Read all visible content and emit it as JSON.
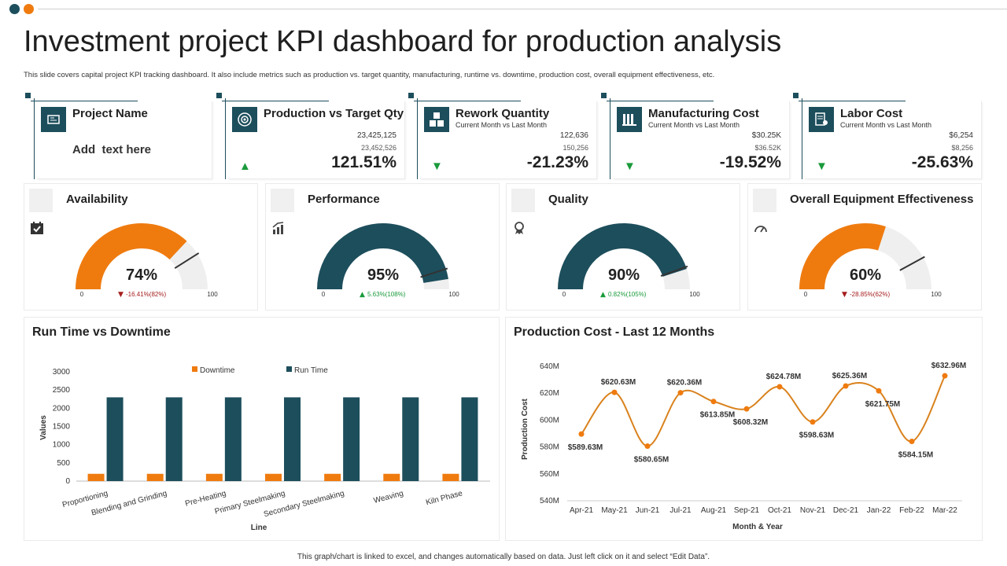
{
  "colors": {
    "teal": "#1d4e5c",
    "orange": "#ef7b0f",
    "gray": "#efefef",
    "green": "#1a9a3b",
    "red": "#a51d1d"
  },
  "title": "Investment project KPI dashboard for production analysis",
  "subtitle": "This slide covers capital project KPI tracking dashboard. It also include metrics such as production vs. target quantity, manufacturing, runtime vs. downtime, production cost, overall equipment effectiveness, etc.",
  "footer": "This graph/chart is linked to excel, and changes automatically based on data. Just left click on it and select “Edit Data”.",
  "kpis": [
    {
      "title": "Project Name",
      "placeholder": "Add  text here",
      "icon": "document-icon"
    },
    {
      "title": "Production vs Target Qty",
      "value1": "23,425,125",
      "value2": "23,452,526",
      "pct": "121.51%",
      "trend": "up",
      "icon": "target-icon"
    },
    {
      "title": "Rework Quantity",
      "subtitle": "Current Month vs Last Month",
      "value1": "122,636",
      "value2": "150,256",
      "pct": "-21.23%",
      "trend": "down",
      "icon": "boxes-icon"
    },
    {
      "title": "Manufacturing Cost",
      "subtitle": "Current Month vs Last Month",
      "value1": "$30.25K",
      "value2": "$36.52K",
      "pct": "-19.52%",
      "trend": "down",
      "icon": "factory-icon"
    },
    {
      "title": "Labor Cost",
      "subtitle": "Current Month vs Last Month",
      "value1": "$6,254",
      "value2": "$8,256",
      "pct": "-25.63%",
      "trend": "down",
      "icon": "labor-icon"
    }
  ],
  "gauges": [
    {
      "title": "Availability",
      "value": 74,
      "label": "74%",
      "color": "#ef7b0f",
      "change": "-16.41%(82%)",
      "trend": "down",
      "marker": 82,
      "min": "0",
      "max": "100",
      "icon": "calendar-check-icon"
    },
    {
      "title": "Performance",
      "value": 95,
      "label": "95%",
      "color": "#1d4e5c",
      "change": "5.63%(108%)",
      "trend": "up",
      "marker": 90,
      "min": "0",
      "max": "100",
      "icon": "growth-icon"
    },
    {
      "title": "Quality",
      "value": 90,
      "label": "90%",
      "color": "#1d4e5c",
      "change": "0.82%(105%)",
      "trend": "up",
      "marker": 89,
      "min": "0",
      "max": "100",
      "icon": "award-icon"
    },
    {
      "title": "Overall Equipment Effectiveness",
      "value": 60,
      "label": "60%",
      "color": "#ef7b0f",
      "change": "-28.85%(62%)",
      "trend": "down",
      "marker": 84,
      "min": "0",
      "max": "100",
      "icon": "gauge-icon"
    }
  ],
  "chart_data": [
    {
      "type": "bar",
      "title": "Run Time vs Downtime",
      "categories": [
        "Proportioning",
        "Blending and Grinding",
        "Pre-Heating",
        "Primary Steelmaking",
        "Secondary Steelmaking",
        "Weaving",
        "Kiln Phase"
      ],
      "series": [
        {
          "name": "Downtime",
          "values": [
            200,
            200,
            200,
            200,
            200,
            200,
            200
          ]
        },
        {
          "name": "Run Time",
          "values": [
            2300,
            2300,
            2300,
            2300,
            2300,
            2300,
            2300
          ]
        }
      ],
      "yticks": [
        "0",
        "500",
        "1000",
        "1500",
        "2000",
        "2500",
        "3000"
      ],
      "xlabel": "Line",
      "ylabel": "Values",
      "ylim": [
        0,
        3000
      ],
      "legend": "top"
    },
    {
      "type": "line",
      "title": "Production Cost - Last 12 Months",
      "categories": [
        "Apr-21",
        "May-21",
        "Jun-21",
        "Jul-21",
        "Aug-21",
        "Sep-21",
        "Oct-21",
        "Nov-21",
        "Dec-21",
        "Jan-22",
        "Feb-22",
        "Mar-22"
      ],
      "values": [
        589.63,
        620.63,
        580.65,
        620.36,
        613.85,
        608.32,
        624.78,
        598.63,
        625.36,
        621.75,
        584.15,
        632.96
      ],
      "data_labels": [
        "$589.63M",
        "$620.63M",
        "$580.65M",
        "$620.36M",
        "$613.85M",
        "$608.32M",
        "$624.78M",
        "$598.63M",
        "$625.36M",
        "$621.75M",
        "$584.15M",
        "$632.96M"
      ],
      "yticks": [
        "540M",
        "560M",
        "580M",
        "600M",
        "620M",
        "640M"
      ],
      "xlabel": "Month & Year",
      "ylabel": "Production Cost",
      "ylim": [
        540,
        640
      ]
    }
  ]
}
